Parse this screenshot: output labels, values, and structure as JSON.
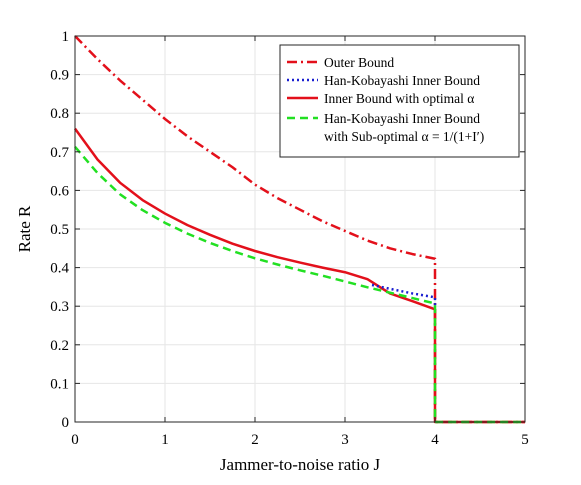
{
  "chart_data": {
    "type": "line",
    "title": "",
    "xlabel": "Jammer-to-noise ratio J",
    "ylabel": "Rate R",
    "xlim": [
      0,
      5
    ],
    "ylim": [
      0,
      1
    ],
    "xticks": [
      0,
      1,
      2,
      3,
      4,
      5
    ],
    "yticks": [
      0,
      0.1,
      0.2,
      0.3,
      0.4,
      0.5,
      0.6,
      0.7,
      0.8,
      0.9,
      1
    ],
    "xtick_labels": [
      "0",
      "1",
      "2",
      "3",
      "4",
      "5"
    ],
    "ytick_labels": [
      "0",
      "0.1",
      "0.2",
      "0.3",
      "0.4",
      "0.5",
      "0.6",
      "0.7",
      "0.8",
      "0.9",
      "1"
    ],
    "grid": true,
    "legend_position": "top-right",
    "series": [
      {
        "name": "Outer Bound",
        "color": "#e3101b",
        "style": "dashdot",
        "width": 2.5,
        "points": [
          [
            0,
            1
          ],
          [
            0.25,
            0.94
          ],
          [
            0.5,
            0.885
          ],
          [
            0.75,
            0.835
          ],
          [
            1,
            0.785
          ],
          [
            1.25,
            0.74
          ],
          [
            1.5,
            0.7
          ],
          [
            1.75,
            0.66
          ],
          [
            2,
            0.615
          ],
          [
            2.25,
            0.58
          ],
          [
            2.5,
            0.55
          ],
          [
            2.75,
            0.52
          ],
          [
            3,
            0.495
          ],
          [
            3.25,
            0.47
          ],
          [
            3.5,
            0.45
          ],
          [
            3.75,
            0.435
          ],
          [
            4,
            0.423
          ],
          [
            4,
            0
          ],
          [
            5,
            0
          ]
        ]
      },
      {
        "name": "Han-Kobayashi Inner Bound",
        "color": "#1a1fd0",
        "style": "dotted",
        "width": 2.5,
        "points": [
          [
            3.3,
            0.355
          ],
          [
            3.5,
            0.345
          ],
          [
            3.75,
            0.333
          ],
          [
            4,
            0.323
          ],
          [
            4,
            0.3
          ]
        ]
      },
      {
        "name": "Inner Bound with optimal α",
        "color": "#e3101b",
        "style": "solid",
        "width": 2.5,
        "points": [
          [
            0,
            0.76
          ],
          [
            0.25,
            0.68
          ],
          [
            0.5,
            0.62
          ],
          [
            0.75,
            0.575
          ],
          [
            1,
            0.54
          ],
          [
            1.25,
            0.51
          ],
          [
            1.5,
            0.485
          ],
          [
            1.75,
            0.462
          ],
          [
            2,
            0.443
          ],
          [
            2.25,
            0.427
          ],
          [
            2.5,
            0.413
          ],
          [
            2.75,
            0.4
          ],
          [
            3,
            0.388
          ],
          [
            3.25,
            0.37
          ],
          [
            3.5,
            0.333
          ],
          [
            3.75,
            0.313
          ],
          [
            4,
            0.292
          ],
          [
            4,
            0
          ],
          [
            5,
            0
          ]
        ]
      },
      {
        "name_line1": "Han-Kobayashi Inner Bound",
        "name_line2": "with Sub-optimal α = 1/(1+I′)",
        "color": "#22e022",
        "style": "dashed",
        "width": 2.5,
        "points": [
          [
            0,
            0.713
          ],
          [
            0.25,
            0.645
          ],
          [
            0.5,
            0.59
          ],
          [
            0.75,
            0.549
          ],
          [
            1,
            0.516
          ],
          [
            1.25,
            0.488
          ],
          [
            1.5,
            0.464
          ],
          [
            1.75,
            0.443
          ],
          [
            2,
            0.424
          ],
          [
            2.25,
            0.408
          ],
          [
            2.5,
            0.393
          ],
          [
            2.75,
            0.379
          ],
          [
            3,
            0.364
          ],
          [
            3.25,
            0.349
          ],
          [
            3.5,
            0.335
          ],
          [
            3.75,
            0.321
          ],
          [
            4,
            0.307
          ],
          [
            4,
            0
          ],
          [
            5,
            0
          ]
        ]
      }
    ]
  }
}
